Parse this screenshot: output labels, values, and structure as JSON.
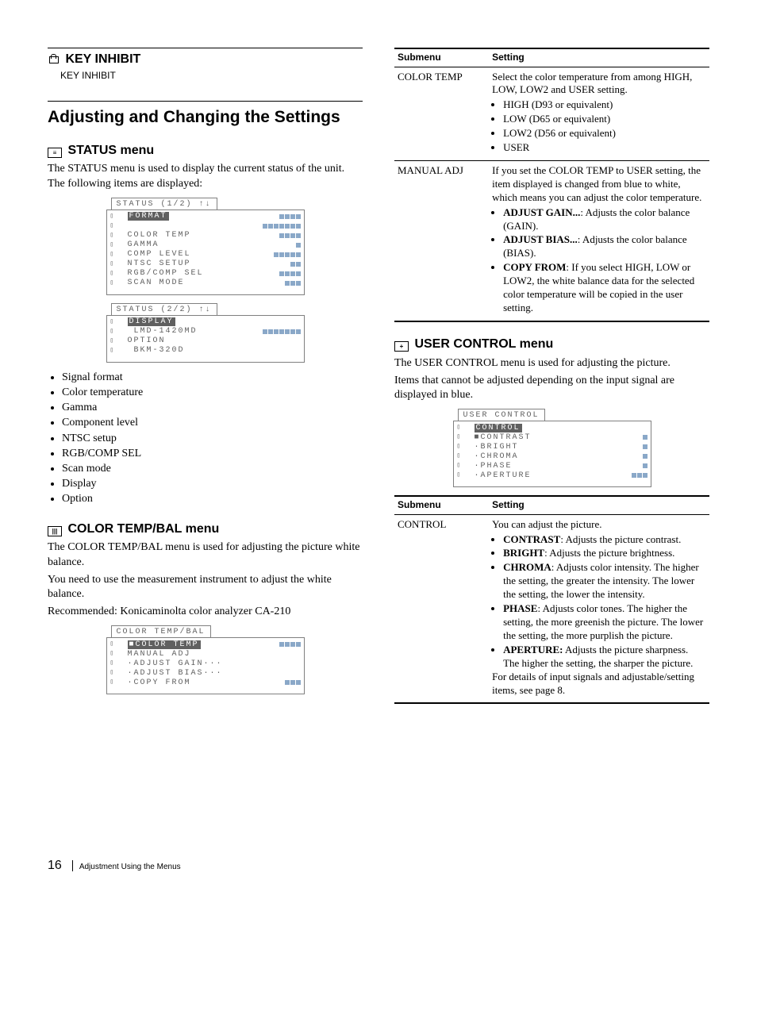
{
  "left": {
    "key_inhibit": {
      "heading": "KEY INHIBIT",
      "sub": "KEY INHIBIT"
    },
    "main_heading": "Adjusting and Changing the Settings",
    "status": {
      "heading": "STATUS menu",
      "intro": "The STATUS menu is used to display the current status of the unit. The following items are displayed:",
      "screen1_tab": "STATUS (1/2) ↑↓",
      "screen1_rows": [
        {
          "label": "FORMAT",
          "hl": true,
          "bars": 4
        },
        {
          "label": " ",
          "bars": 7
        },
        {
          "label": "COLOR TEMP",
          "bars": 4
        },
        {
          "label": "GAMMA",
          "bars": 1
        },
        {
          "label": "COMP LEVEL",
          "bars": 5
        },
        {
          "label": "NTSC SETUP",
          "bars": 2
        },
        {
          "label": "RGB/COMP SEL",
          "bars": 4
        },
        {
          "label": "SCAN MODE",
          "bars": 3
        }
      ],
      "screen2_tab": "STATUS (2/2) ↑↓",
      "screen2_rows": [
        {
          "label": "DISPLAY",
          "hl": true,
          "bars": 0
        },
        {
          "label": " LMD-1420MD",
          "bars": 7
        },
        {
          "label": "OPTION",
          "bars": 0
        },
        {
          "label": " BKM-320D",
          "bars": 0
        }
      ],
      "bullets": [
        "Signal format",
        "Color temperature",
        "Gamma",
        "Component level",
        "NTSC setup",
        "RGB/COMP SEL",
        "Scan mode",
        "Display",
        "Option"
      ]
    },
    "colortemp": {
      "heading": "COLOR TEMP/BAL menu",
      "p1": "The COLOR TEMP/BAL menu is used for adjusting the picture white balance.",
      "p2": "You need to use the measurement instrument to adjust the white balance.",
      "p3": "Recommended: Konicaminolta color analyzer CA-210",
      "screen_tab": "COLOR TEMP/BAL",
      "screen_rows": [
        {
          "label": "■COLOR TEMP",
          "hl": true,
          "bars": 4
        },
        {
          "label": "MANUAL ADJ",
          "bars": 0
        },
        {
          "label": "·ADJUST GAIN···",
          "bars": 0
        },
        {
          "label": "·ADJUST BIAS···",
          "bars": 0
        },
        {
          "label": "·COPY FROM",
          "bars": 3
        }
      ]
    }
  },
  "right": {
    "table1": {
      "head": [
        "Submenu",
        "Setting"
      ],
      "rows": [
        {
          "submenu": "COLOR TEMP",
          "intro": "Select the color temperature from among HIGH, LOW, LOW2 and USER setting.",
          "bullets": [
            "HIGH (D93 or equivalent)",
            "LOW (D65 or equivalent)",
            "LOW2 (D56 or equivalent)",
            "USER"
          ]
        },
        {
          "submenu": "MANUAL ADJ",
          "intro": "If you set the COLOR TEMP to USER setting, the item displayed is changed from blue to white, which means you can adjust the color temperature.",
          "bullets_html": [
            "<b>ADJUST GAIN...</b>: Adjusts the color balance (GAIN).",
            "<b>ADJUST BIAS...</b>: Adjusts the color balance (BIAS).",
            "<b>COPY FROM</b>: If you select HIGH, LOW or LOW2, the white balance data for the selected color temperature will be copied in the user setting."
          ]
        }
      ]
    },
    "usercontrol": {
      "heading": "USER CONTROL menu",
      "p1": "The USER CONTROL menu is used for adjusting the picture.",
      "p2": "Items that cannot be adjusted depending on the input signal are displayed in blue.",
      "screen_tab": "USER CONTROL",
      "screen_rows": [
        {
          "label": "CONTROL",
          "hl": true,
          "bars": 0
        },
        {
          "label": "■CONTRAST",
          "bars": 1
        },
        {
          "label": "·BRIGHT",
          "bars": 1
        },
        {
          "label": "·CHROMA",
          "bars": 1
        },
        {
          "label": "·PHASE",
          "bars": 1
        },
        {
          "label": "·APERTURE",
          "bars": 3
        }
      ]
    },
    "table2": {
      "head": [
        "Submenu",
        "Setting"
      ],
      "row": {
        "submenu": "CONTROL",
        "intro": "You can adjust the picture.",
        "bullets_html": [
          "<b>CONTRAST</b>: Adjusts the picture contrast.",
          "<b>BRIGHT</b>: Adjusts the picture brightness.",
          "<b>CHROMA</b>: Adjusts color intensity. The higher the setting, the greater the intensity.  The lower the setting, the lower the intensity.",
          "<b>PHASE</b>: Adjusts color tones.  The higher the setting, the more greenish the picture.  The lower the setting, the more purplish the picture.",
          "<b>APERTURE:</b> Adjusts the picture sharpness.  The higher the setting, the sharper the picture."
        ],
        "outro": "For details of input signals and adjustable/setting items, see page 8."
      }
    }
  },
  "footer": {
    "page": "16",
    "title": "Adjustment Using the Menus"
  }
}
